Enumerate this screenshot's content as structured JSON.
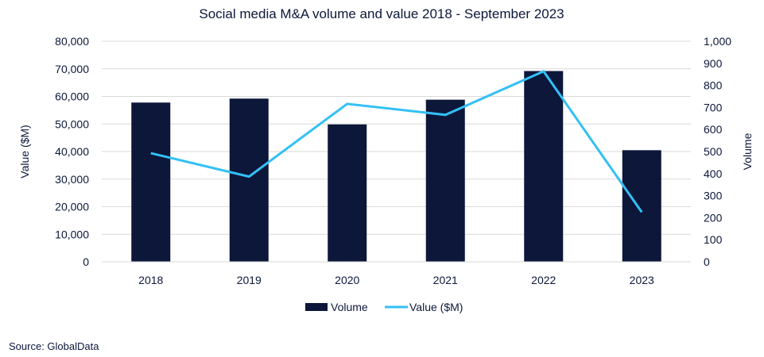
{
  "chart_data": {
    "type": "bar+line",
    "title": "Social media M&A volume and value 2018 - September 2023",
    "categories": [
      "2018",
      "2019",
      "2020",
      "2021",
      "2022",
      "2023"
    ],
    "series": [
      {
        "name": "Volume",
        "type": "bar",
        "axis": "right",
        "color": "#0c173a",
        "values": [
          722,
          740,
          623,
          735,
          865,
          506
        ]
      },
      {
        "name": "Value ($M)",
        "type": "line",
        "axis": "left",
        "color": "#33c0f5",
        "values": [
          39400,
          30900,
          57300,
          53300,
          69100,
          18000
        ]
      }
    ],
    "left_axis": {
      "label": "Value ($M)",
      "ylim": [
        0,
        80000
      ],
      "ticks": [
        0,
        10000,
        20000,
        30000,
        40000,
        50000,
        60000,
        70000,
        80000
      ],
      "tick_labels": [
        "0",
        "10,000",
        "20,000",
        "30,000",
        "40,000",
        "50,000",
        "60,000",
        "70,000",
        "80,000"
      ]
    },
    "right_axis": {
      "label": "Volume",
      "ylim": [
        0,
        1000
      ],
      "ticks": [
        0,
        100,
        200,
        300,
        400,
        500,
        600,
        700,
        800,
        900,
        1000
      ],
      "tick_labels": [
        "0",
        "100",
        "200",
        "300",
        "400",
        "500",
        "600",
        "700",
        "800",
        "900",
        "1,000"
      ]
    },
    "grid": true,
    "legend": {
      "position": "bottom",
      "entries": [
        "Volume",
        "Value ($M)"
      ]
    }
  },
  "source": "Source: GlobalData"
}
